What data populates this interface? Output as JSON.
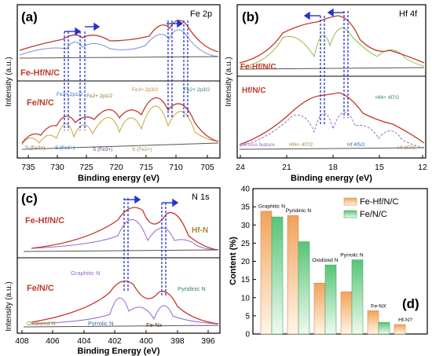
{
  "panels": {
    "a": {
      "letter": "(a)",
      "title": "Fe 2p",
      "ylabel": "Intensity (a.u.)",
      "xlabel": "Binding energy (eV)",
      "xticks": [
        "735",
        "730",
        "725",
        "720",
        "715",
        "710",
        "705"
      ],
      "sample_top": "Fe-Hf/N/C",
      "sample_bottom": "Fe/N/C",
      "peak_labels": [
        "Fe3+ 2p1/2",
        "Fe2+ 2p1/2",
        "Fe3+ 2p3/2",
        "Fe2+ 2p3/2"
      ],
      "sat_labels": [
        "S (Fe3+)",
        "S (Fe2+)",
        "S (Fe3+)",
        "S (Fe2+)"
      ]
    },
    "b": {
      "letter": "(b)",
      "title": "Hf 4f",
      "ylabel": "Intensity (a.u.)",
      "xlabel": "Binding energy (eV)",
      "xticks": [
        "24",
        "21",
        "18",
        "15",
        "12"
      ],
      "sample_top": "Fe-Hf/N/C",
      "sample_bottom": "Hf/N/C",
      "peak_labels": [
        "Hf loss feature",
        "Hf4+ 4f7/2",
        "Hf 4f5/2",
        "Hf4+ 4f7/2",
        "Hf 4f7/2"
      ]
    },
    "c": {
      "letter": "(c)",
      "title": "N 1s",
      "ylabel": "Intensity (a.u.)",
      "xlabel": "Binding Energy (eV)",
      "xticks": [
        "408",
        "406",
        "404",
        "402",
        "400",
        "398",
        "396"
      ],
      "sample_top": "Fe-Hf/N/C",
      "sample_bottom": "Fe/N/C",
      "top_label": "Hf-N",
      "peak_labels": [
        "Graphitic N",
        "Pyridinic N",
        "Oxidized N",
        "Pyrrolic N",
        "Fe-Nx"
      ]
    }
  },
  "chart_data": {
    "type": "bar",
    "letter": "(d)",
    "ylabel": "Content (%)",
    "ylim": [
      0,
      40
    ],
    "yticks": [
      "0",
      "5",
      "10",
      "15",
      "20",
      "25",
      "30",
      "35",
      "40"
    ],
    "categories": [
      "Graphitic N",
      "Pyridinic N",
      "Oxidized N",
      "Pyrrolic N",
      "Fe-NX",
      "Hf-N?"
    ],
    "series": [
      {
        "name": "Fe-Hf/N/C",
        "values": [
          33.8,
          32.6,
          14.0,
          11.6,
          6.4,
          2.6
        ],
        "color": "#f7c48c"
      },
      {
        "name": "Fe/N/C",
        "values": [
          32.2,
          25.4,
          19.0,
          20.4,
          3.2,
          0
        ],
        "color": "#9fdcae"
      }
    ],
    "legend": "top-right"
  }
}
